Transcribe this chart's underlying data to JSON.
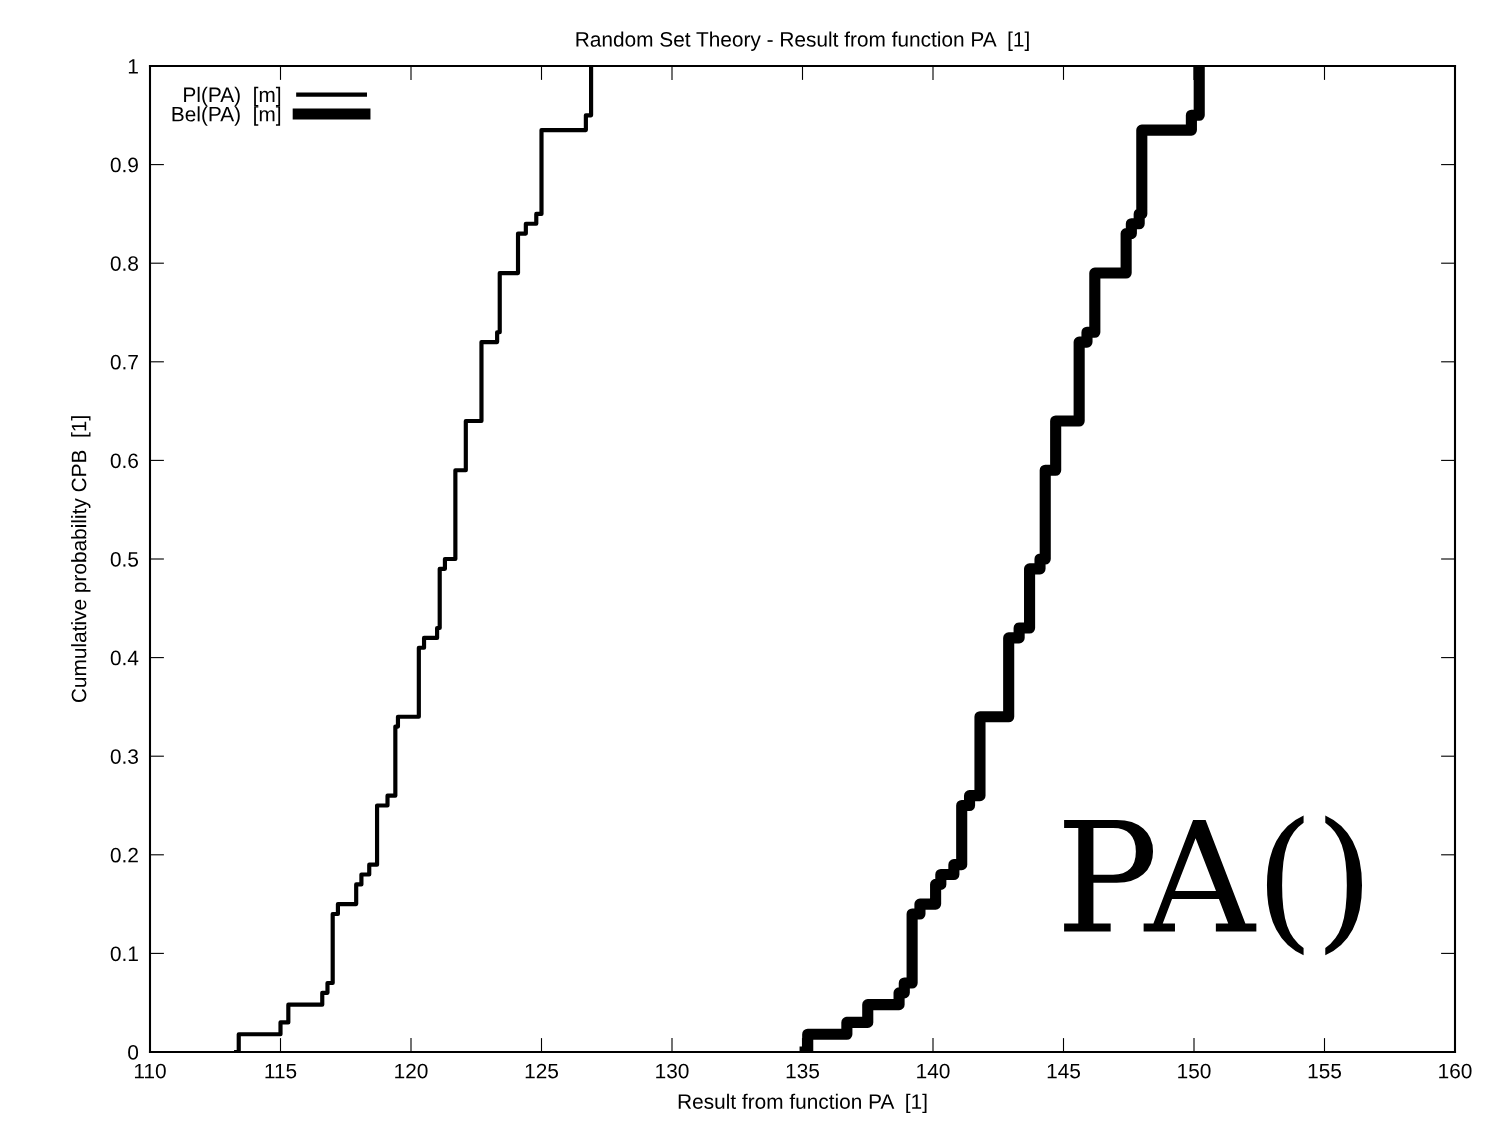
{
  "chart_data": {
    "type": "step",
    "title": "Random Set Theory - Result from function PA  [1]",
    "xlabel": "Result from function PA  [1]",
    "ylabel": "Cumulative probability CPB  [1]",
    "xlim": [
      110,
      160
    ],
    "xticks": [
      110,
      115,
      120,
      125,
      130,
      135,
      140,
      145,
      150,
      155,
      160
    ],
    "ylim": [
      0,
      1
    ],
    "yticks": [
      0,
      0.1,
      0.2,
      0.3,
      0.4,
      0.5,
      0.6,
      0.7,
      0.8,
      0.9,
      1
    ],
    "grid": false,
    "legend": "top left",
    "marker": "none",
    "line_style": "solid",
    "annotations": [
      "PA()"
    ],
    "series": [
      {
        "name": "Pl(PA)  [m]",
        "color": "#000000",
        "x": [
          113.3,
          113.4,
          115.0,
          115.3,
          116.6,
          116.8,
          117.0,
          117.2,
          117.9,
          118.1,
          118.4,
          118.7,
          119.1,
          119.4,
          119.5,
          120.3,
          120.5,
          121.0,
          121.1,
          121.3,
          121.7,
          122.1,
          122.7,
          123.3,
          123.4,
          124.1,
          124.4,
          124.8,
          125.0,
          126.7,
          126.9
        ],
        "values": [
          0,
          0.018,
          0.03,
          0.048,
          0.06,
          0.07,
          0.14,
          0.15,
          0.17,
          0.18,
          0.19,
          0.25,
          0.26,
          0.33,
          0.34,
          0.41,
          0.42,
          0.43,
          0.49,
          0.5,
          0.59,
          0.64,
          0.72,
          0.73,
          0.79,
          0.83,
          0.84,
          0.85,
          0.935,
          0.95,
          1.0
        ]
      },
      {
        "name": "Bel(PA)  [m]",
        "color": "#000000",
        "x": [
          135.1,
          135.2,
          136.7,
          137.5,
          138.7,
          138.9,
          139.2,
          139.5,
          140.1,
          140.3,
          140.8,
          141.1,
          141.4,
          141.8,
          142.9,
          143.3,
          143.7,
          144.1,
          144.3,
          144.7,
          145.6,
          145.9,
          146.2,
          147.4,
          147.6,
          147.9,
          148.0,
          149.9,
          150.2
        ],
        "values": [
          0,
          0.018,
          0.03,
          0.048,
          0.06,
          0.07,
          0.14,
          0.15,
          0.17,
          0.18,
          0.19,
          0.25,
          0.26,
          0.34,
          0.42,
          0.43,
          0.49,
          0.5,
          0.59,
          0.64,
          0.72,
          0.73,
          0.79,
          0.83,
          0.84,
          0.85,
          0.935,
          0.95,
          1.0
        ]
      }
    ]
  }
}
